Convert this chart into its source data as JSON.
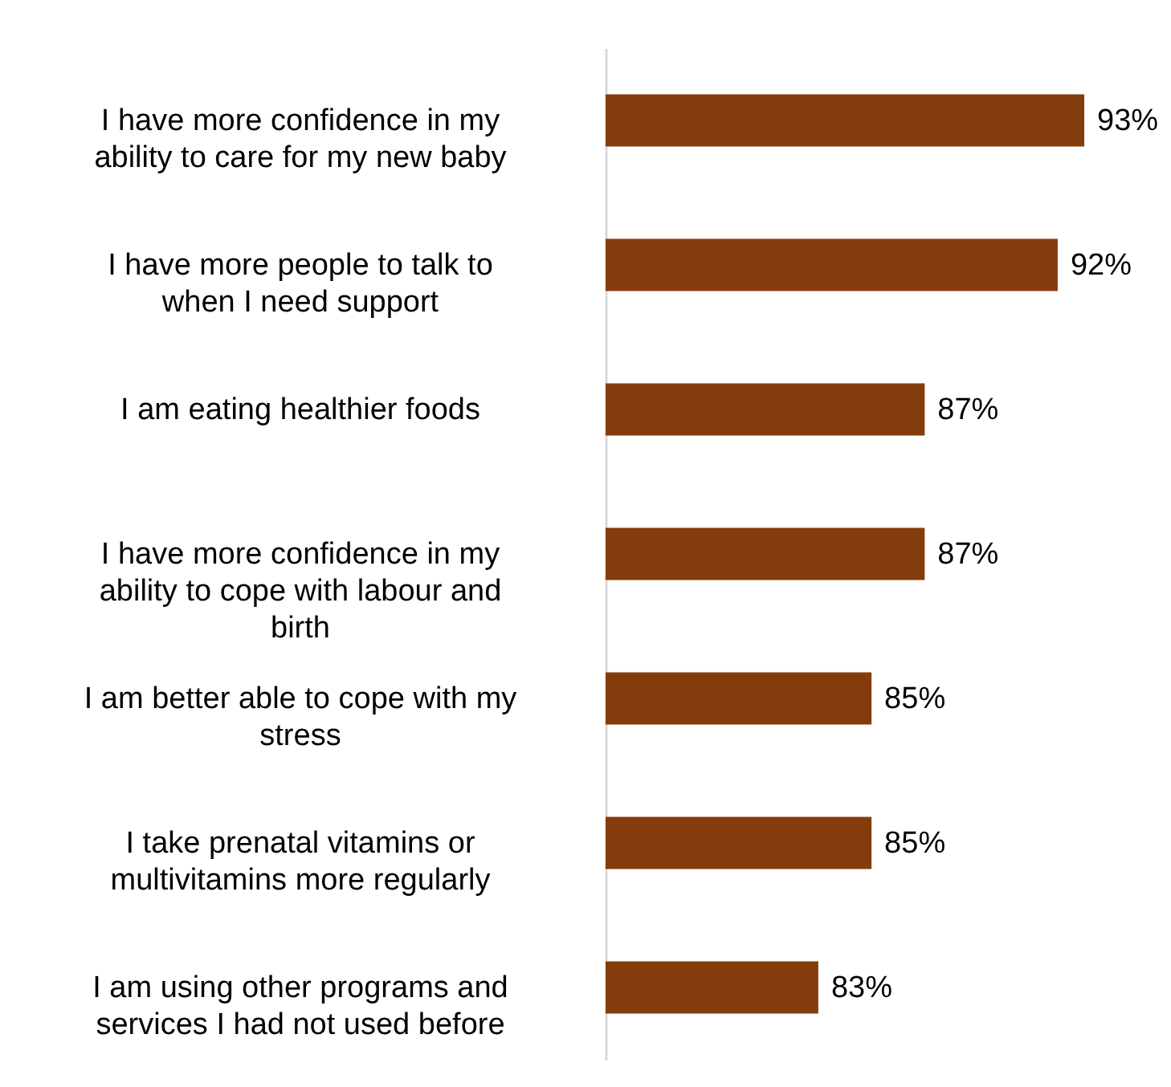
{
  "chart_data": {
    "type": "bar",
    "orientation": "horizontal",
    "categories": [
      "I have more confidence in my ability to care for my new baby",
      "I have more people to talk to when I need support",
      "I am eating healthier foods",
      "I have more confidence in my ability to cope with labour and birth",
      "I am better able to cope with my stress",
      "I take prenatal vitamins or multivitamins more regularly",
      "I am using other programs and services I had not used before"
    ],
    "values": [
      93,
      92,
      87,
      87,
      85,
      85,
      83
    ],
    "value_labels": [
      "93%",
      "92%",
      "87%",
      "87%",
      "85%",
      "85%",
      "83%"
    ],
    "color": "#843c0c",
    "xlim": [
      75,
      93
    ],
    "grid": false
  }
}
